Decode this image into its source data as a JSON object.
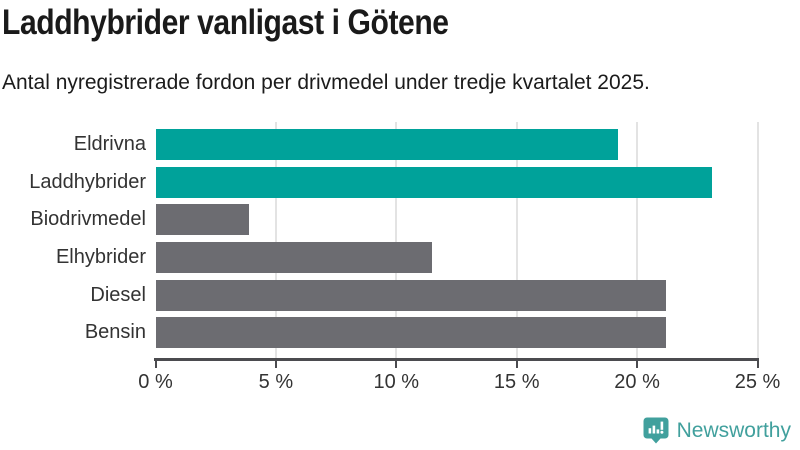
{
  "header": {
    "title": "Laddhybrider vanligast i Götene",
    "subtitle": "Antal nyregistrerade fordon per drivmedel under tredje kvartalet 2025."
  },
  "chart_data": {
    "type": "bar",
    "orientation": "horizontal",
    "title": "Laddhybrider vanligast i Götene",
    "subtitle": "Antal nyregistrerade fordon per drivmedel under tredje kvartalet 2025.",
    "categories": [
      "Eldrivna",
      "Laddhybrider",
      "Biodrivmedel",
      "Elhybrider",
      "Diesel",
      "Bensin"
    ],
    "values": [
      19.2,
      23.1,
      3.9,
      11.5,
      21.2,
      21.2
    ],
    "unit": "%",
    "bar_colors": [
      "#00a29a",
      "#00a29a",
      "#6c6c71",
      "#6c6c71",
      "#6c6c71",
      "#6c6c71"
    ],
    "xlim": [
      0,
      25
    ],
    "x_ticks": [
      0,
      5,
      10,
      15,
      20,
      25
    ],
    "x_tick_labels": [
      "0 %",
      "5 %",
      "10 %",
      "15 %",
      "20 %",
      "25 %"
    ],
    "grid": "vertical-light",
    "legend": "none",
    "ylabel": "",
    "xlabel": ""
  },
  "colors": {
    "highlight": "#00a29a",
    "neutral": "#6c6c71",
    "axis": "#4b4b4f",
    "grid": "#e3e3e3",
    "text": "#333333",
    "brand": "#41a09d"
  },
  "footer": {
    "brand_name": "Newsworthy",
    "logo_icon": "bar-chart-exclamation-bubble-icon"
  }
}
